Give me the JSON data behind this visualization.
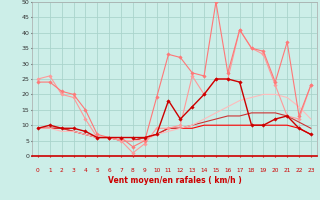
{
  "xlabel": "Vent moyen/en rafales ( km/h )",
  "background_color": "#cceee8",
  "grid_color": "#aad4cc",
  "xlim": [
    -0.5,
    23.5
  ],
  "ylim": [
    0,
    50
  ],
  "yticks": [
    0,
    5,
    10,
    15,
    20,
    25,
    30,
    35,
    40,
    45,
    50
  ],
  "xticks": [
    0,
    1,
    2,
    3,
    4,
    5,
    6,
    7,
    8,
    9,
    10,
    11,
    12,
    13,
    14,
    15,
    16,
    17,
    18,
    19,
    20,
    21,
    22,
    23
  ],
  "series": [
    {
      "x": [
        0,
        1,
        2,
        3,
        4,
        5,
        6,
        7,
        8,
        9,
        10,
        11,
        12,
        13,
        14,
        15,
        16,
        17,
        18,
        19,
        20,
        21,
        22,
        23
      ],
      "y": [
        25,
        26,
        20,
        19,
        12,
        6,
        6,
        5,
        1,
        4,
        9,
        9,
        10,
        26,
        20,
        25,
        25,
        41,
        35,
        33,
        23,
        13,
        12,
        23
      ],
      "color": "#ff9999",
      "linewidth": 0.8,
      "marker": "D",
      "markersize": 1.8
    },
    {
      "x": [
        0,
        1,
        2,
        3,
        4,
        5,
        6,
        7,
        8,
        9,
        10,
        11,
        12,
        13,
        14,
        15,
        16,
        17,
        18,
        19,
        20,
        21,
        22,
        23
      ],
      "y": [
        24,
        24,
        21,
        20,
        15,
        7,
        6,
        6,
        3,
        5,
        19,
        33,
        32,
        27,
        26,
        50,
        27,
        41,
        35,
        34,
        24,
        37,
        13,
        23
      ],
      "color": "#ff7777",
      "linewidth": 0.8,
      "marker": "D",
      "markersize": 1.8
    },
    {
      "x": [
        0,
        1,
        2,
        3,
        4,
        5,
        6,
        7,
        8,
        9,
        10,
        11,
        12,
        13,
        14,
        15,
        16,
        17,
        18,
        19,
        20,
        21,
        22,
        23
      ],
      "y": [
        9,
        10,
        9,
        9,
        8,
        6,
        6,
        6,
        6,
        6,
        7,
        18,
        12,
        16,
        20,
        25,
        25,
        24,
        10,
        10,
        12,
        13,
        9,
        7
      ],
      "color": "#cc0000",
      "linewidth": 1.0,
      "marker": "D",
      "markersize": 1.8
    },
    {
      "x": [
        0,
        1,
        2,
        3,
        4,
        5,
        6,
        7,
        8,
        9,
        10,
        11,
        12,
        13,
        14,
        15,
        16,
        17,
        18,
        19,
        20,
        21,
        22,
        23
      ],
      "y": [
        9,
        9,
        9,
        8,
        7,
        6,
        6,
        5,
        5,
        6,
        7,
        9,
        9,
        9,
        10,
        10,
        10,
        10,
        10,
        10,
        10,
        10,
        9,
        7
      ],
      "color": "#ff0000",
      "linewidth": 0.8,
      "marker": null,
      "markersize": 0
    },
    {
      "x": [
        0,
        1,
        2,
        3,
        4,
        5,
        6,
        7,
        8,
        9,
        10,
        11,
        12,
        13,
        14,
        15,
        16,
        17,
        18,
        19,
        20,
        21,
        22,
        23
      ],
      "y": [
        9,
        9,
        9,
        8,
        7,
        6,
        6,
        5,
        5,
        6,
        7,
        9,
        9,
        10,
        11,
        12,
        13,
        13,
        14,
        14,
        14,
        13,
        11,
        9
      ],
      "color": "#cc3333",
      "linewidth": 0.8,
      "marker": null,
      "markersize": 0
    },
    {
      "x": [
        0,
        1,
        2,
        3,
        4,
        5,
        6,
        7,
        8,
        9,
        10,
        11,
        12,
        13,
        14,
        15,
        16,
        17,
        18,
        19,
        20,
        21,
        22,
        23
      ],
      "y": [
        9,
        9,
        8,
        8,
        7,
        6,
        6,
        5,
        5,
        5,
        7,
        8,
        9,
        10,
        12,
        14,
        16,
        18,
        19,
        20,
        20,
        19,
        16,
        12
      ],
      "color": "#ffbbbb",
      "linewidth": 0.8,
      "marker": null,
      "markersize": 0
    }
  ],
  "wind_arrows": {
    "directions": [
      "↙",
      "←",
      "←",
      "←",
      "←",
      "←",
      "←",
      "←",
      "←",
      "←",
      "→",
      "↑",
      "→",
      "↗",
      "→",
      "↑",
      "↑",
      "→",
      "↗",
      "↖",
      "↙",
      "↙",
      "↙",
      "↙"
    ],
    "color": "#ff0000"
  }
}
